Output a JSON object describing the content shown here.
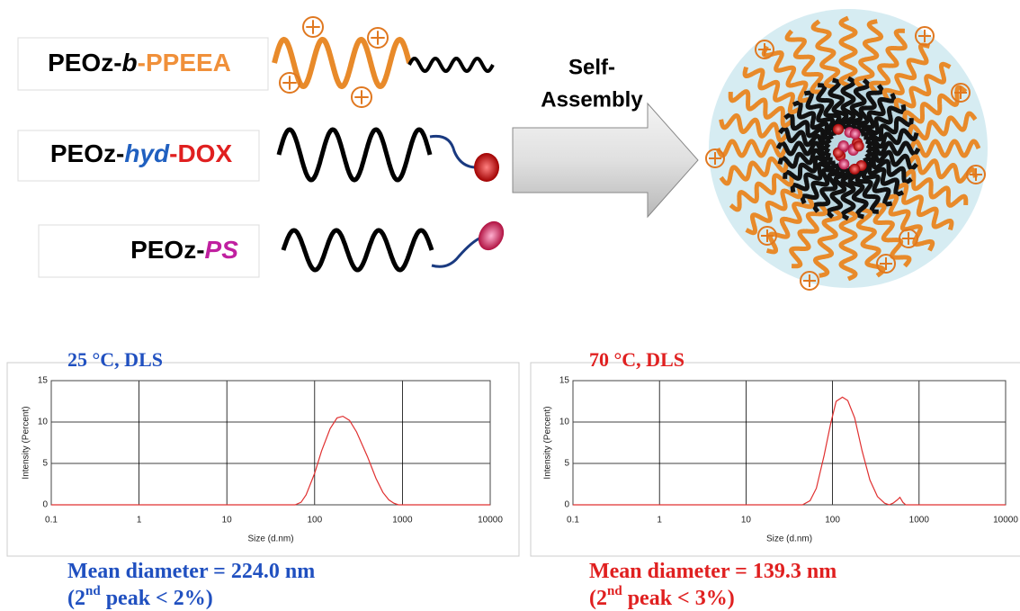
{
  "diagram": {
    "labels": [
      {
        "parts": [
          {
            "text": "PEOz-",
            "color": "#000000"
          },
          {
            "text": "b",
            "color": "#000000",
            "italic": true
          },
          {
            "text": "-PPEEA",
            "color": "#f0903a"
          }
        ]
      },
      {
        "parts": [
          {
            "text": "PEOz-",
            "color": "#000000"
          },
          {
            "text": "hyd",
            "color": "#2060c0",
            "italic": true
          },
          {
            "text": "-DOX",
            "color": "#e02020"
          }
        ]
      },
      {
        "parts": [
          {
            "text": "PEOz-",
            "color": "#000000"
          },
          {
            "text": "PS",
            "color": "#c020a0",
            "italic": true
          }
        ]
      }
    ],
    "arrow_label": [
      "Self-",
      "Assembly"
    ]
  },
  "chart_data": [
    {
      "type": "line",
      "title": "25 °C, DLS",
      "title_color": "#2050c0",
      "color": "#e03030",
      "x": [
        0.1,
        1,
        10,
        50,
        60,
        70,
        80,
        100,
        120,
        150,
        180,
        210,
        250,
        300,
        400,
        500,
        600,
        700,
        800,
        900,
        1000,
        10000
      ],
      "values": [
        0,
        0,
        0,
        0,
        0,
        0.3,
        1.2,
        3.8,
        6.5,
        9.2,
        10.5,
        10.7,
        10.2,
        8.8,
        5.8,
        3.2,
        1.5,
        0.6,
        0.2,
        0,
        0,
        0
      ],
      "xlim": [
        0.1,
        10000
      ],
      "xticks": [
        0.1,
        1,
        10,
        100,
        1000,
        10000
      ],
      "ylim": [
        0,
        15
      ],
      "yticks": [
        0,
        5,
        10,
        15
      ],
      "log_x": true,
      "grid": true,
      "xlabel": "Size (d.nm)",
      "ylabel": "Intensity (Percent)",
      "annotations": [
        {
          "parts": [
            "Mean diameter = 224.0 nm"
          ]
        },
        {
          "parts": [
            "(2",
            "nd",
            " peak < 2%)"
          ]
        }
      ]
    },
    {
      "type": "line",
      "title": "70 °C, DLS",
      "title_color": "#e02020",
      "color": "#e03030",
      "x": [
        0.1,
        1,
        10,
        45,
        55,
        65,
        80,
        95,
        110,
        130,
        150,
        180,
        220,
        270,
        330,
        400,
        450,
        500,
        560,
        600,
        650,
        700,
        10000
      ],
      "values": [
        0,
        0,
        0,
        0,
        0.5,
        2,
        6,
        9.8,
        12.5,
        13,
        12.6,
        10.5,
        6.5,
        3,
        1,
        0.2,
        0,
        0.2,
        0.6,
        0.9,
        0.3,
        0,
        0
      ],
      "xlim": [
        0.1,
        10000
      ],
      "xticks": [
        0.1,
        1,
        10,
        100,
        1000,
        10000
      ],
      "ylim": [
        0,
        15
      ],
      "yticks": [
        0,
        5,
        10,
        15
      ],
      "log_x": true,
      "grid": true,
      "xlabel": "Size (d.nm)",
      "ylabel": "Intensity (Percent)",
      "annotations": [
        {
          "parts": [
            "Mean diameter = 139.3 nm"
          ]
        },
        {
          "parts": [
            "(2",
            "nd",
            " peak < 3%)"
          ]
        }
      ]
    }
  ]
}
